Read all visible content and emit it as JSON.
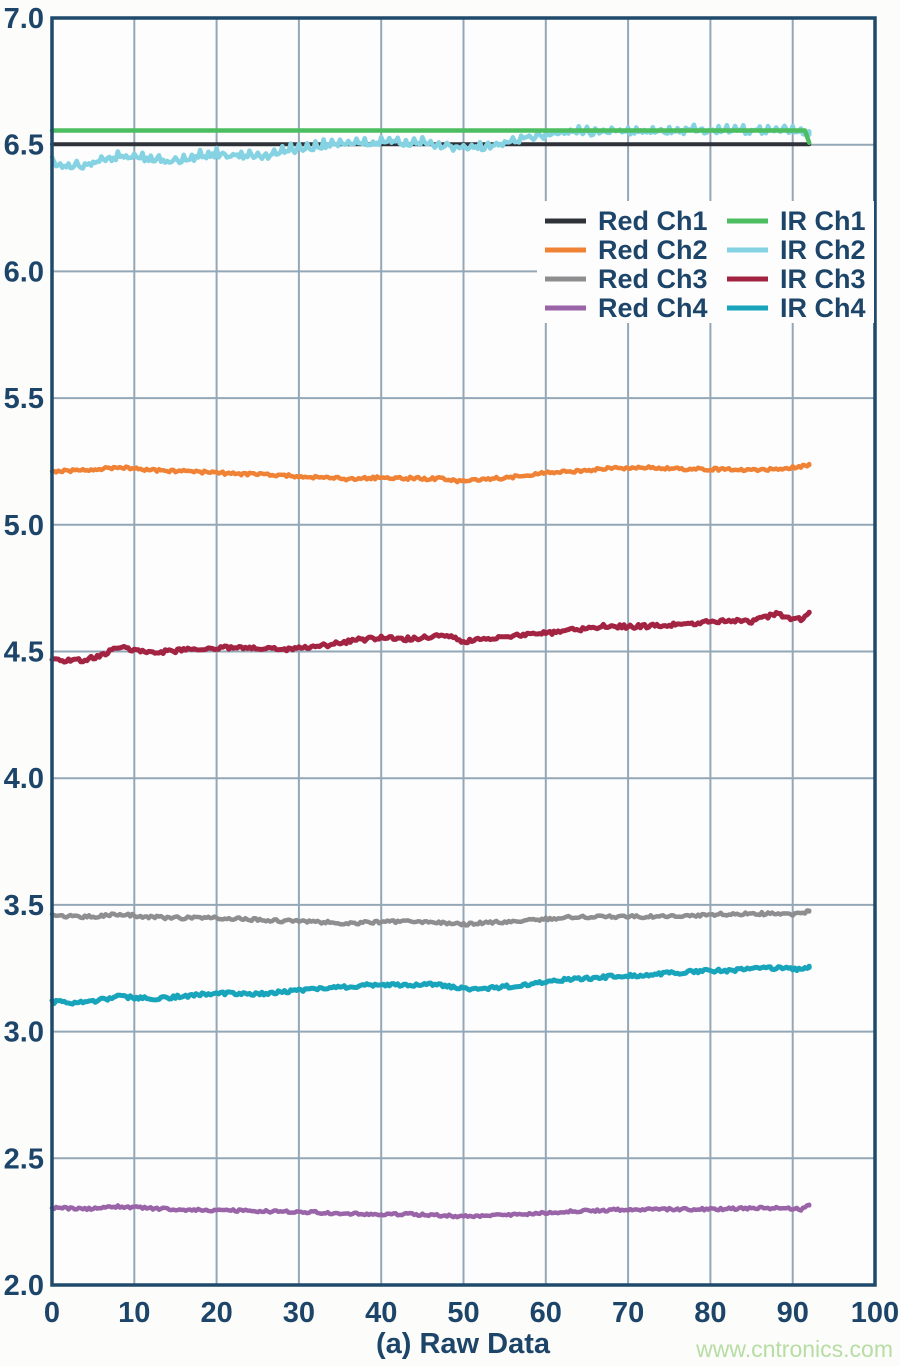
{
  "page": {
    "background": "#fcfcfa",
    "plot_background": "#fdfdfd"
  },
  "watermark": {
    "text": "www.cntronics.com",
    "color": "#b6dda3"
  },
  "chart_data": {
    "type": "line",
    "title": "(a) Raw Data",
    "xlabel": "(a) Raw Data",
    "ylabel": "",
    "xlim": [
      0,
      100
    ],
    "ylim": [
      2.0,
      7.0
    ],
    "grid": true,
    "axis_color": "#1f4a6b",
    "grid_color": "#94a7b7",
    "label_color": "#1d4569",
    "x_ticks": [
      0,
      10,
      20,
      30,
      40,
      50,
      60,
      70,
      80,
      90,
      100
    ],
    "x_tick_labels": [
      "0",
      "10",
      "20",
      "30",
      "40",
      "50",
      "60",
      "70",
      "80",
      "90",
      "100"
    ],
    "y_ticks": [
      2.0,
      2.5,
      3.0,
      3.5,
      4.0,
      4.5,
      5.0,
      5.5,
      6.0,
      6.5,
      7.0
    ],
    "y_tick_labels": [
      "2.0",
      "2.5",
      "3.0",
      "3.5",
      "4.0",
      "4.5",
      "5.0",
      "5.5",
      "6.0",
      "6.5",
      "7.0"
    ],
    "legend": {
      "position": "upper right",
      "columns": [
        [
          "Red Ch1",
          "Red Ch2",
          "Red Ch3",
          "Red Ch4"
        ],
        [
          "IR Ch1",
          "IR Ch2",
          "IR Ch3",
          "IR Ch4"
        ]
      ]
    },
    "series": [
      {
        "name": "Red Ch1",
        "color": "#2f3339",
        "width": 4,
        "noise": 0,
        "spike": 0,
        "x": [
          0,
          92
        ],
        "y": [
          6.502,
          6.502
        ]
      },
      {
        "name": "IR Ch2",
        "color": "#85d3e2",
        "width": 4.5,
        "noise": 0.01,
        "spike": 0.022,
        "x": [
          0,
          2,
          4,
          6,
          8,
          11,
          14,
          17,
          20,
          23,
          26,
          29,
          32,
          35,
          38,
          41,
          44,
          47,
          50,
          53,
          56,
          59,
          62,
          66,
          70,
          75,
          80,
          85,
          90,
          92
        ],
        "y": [
          6.425,
          6.41,
          6.415,
          6.43,
          6.45,
          6.445,
          6.43,
          6.445,
          6.46,
          6.455,
          6.45,
          6.475,
          6.49,
          6.5,
          6.505,
          6.505,
          6.505,
          6.495,
          6.48,
          6.49,
          6.51,
          6.53,
          6.54,
          6.545,
          6.55,
          6.552,
          6.552,
          6.552,
          6.552,
          6.54
        ]
      },
      {
        "name": "IR Ch1",
        "color": "#4cbd60",
        "width": 4.5,
        "noise": 0,
        "spike": 0,
        "x": [
          0,
          91.5,
          92
        ],
        "y": [
          6.556,
          6.556,
          6.508
        ]
      },
      {
        "name": "Red Ch2",
        "color": "#f08236",
        "width": 4.5,
        "noise": 0.006,
        "spike": 0,
        "x": [
          0,
          3,
          6,
          8,
          11,
          14,
          17,
          20,
          24,
          28,
          32,
          36,
          40,
          44,
          47,
          50,
          53,
          57,
          60,
          64,
          68,
          72,
          76,
          80,
          84,
          88,
          90,
          92
        ],
        "y": [
          5.212,
          5.215,
          5.22,
          5.228,
          5.218,
          5.212,
          5.21,
          5.205,
          5.2,
          5.196,
          5.188,
          5.181,
          5.186,
          5.183,
          5.182,
          5.172,
          5.18,
          5.192,
          5.205,
          5.213,
          5.222,
          5.226,
          5.222,
          5.22,
          5.215,
          5.22,
          5.226,
          5.236
        ]
      },
      {
        "name": "IR Ch3",
        "color": "#a32342",
        "width": 5,
        "noise": 0.008,
        "spike": 0,
        "x": [
          0,
          2,
          4,
          6,
          8,
          10,
          13,
          16,
          19,
          22,
          25,
          28,
          31,
          34,
          37,
          40,
          43,
          46,
          48,
          50,
          52,
          55,
          58,
          61,
          64,
          67,
          70,
          73,
          76,
          79,
          82,
          85,
          88,
          90,
          91,
          92
        ],
        "y": [
          4.47,
          4.465,
          4.468,
          4.485,
          4.515,
          4.508,
          4.498,
          4.505,
          4.512,
          4.516,
          4.512,
          4.508,
          4.515,
          4.528,
          4.545,
          4.553,
          4.55,
          4.558,
          4.565,
          4.54,
          4.548,
          4.556,
          4.568,
          4.576,
          4.588,
          4.6,
          4.598,
          4.602,
          4.608,
          4.615,
          4.622,
          4.618,
          4.648,
          4.63,
          4.625,
          4.655
        ]
      },
      {
        "name": "Red Ch3",
        "color": "#8e8e90",
        "width": 4.5,
        "noise": 0.006,
        "spike": 0,
        "x": [
          0,
          4,
          8,
          12,
          16,
          20,
          24,
          28,
          32,
          35,
          38,
          42,
          46,
          50,
          54,
          58,
          62,
          66,
          70,
          74,
          78,
          82,
          86,
          90,
          92
        ],
        "y": [
          3.458,
          3.452,
          3.463,
          3.452,
          3.448,
          3.448,
          3.443,
          3.437,
          3.433,
          3.428,
          3.43,
          3.434,
          3.432,
          3.423,
          3.432,
          3.44,
          3.45,
          3.453,
          3.453,
          3.455,
          3.459,
          3.464,
          3.466,
          3.462,
          3.474
        ]
      },
      {
        "name": "IR Ch4",
        "color": "#18a4bb",
        "width": 5,
        "noise": 0.007,
        "spike": 0,
        "x": [
          0,
          3,
          6,
          8,
          10,
          13,
          16,
          19,
          22,
          25,
          28,
          31,
          34,
          37,
          40,
          43,
          46,
          49,
          51,
          54,
          57,
          60,
          63,
          66,
          69,
          72,
          75,
          78,
          81,
          84,
          87,
          89,
          91,
          92
        ],
        "y": [
          3.118,
          3.112,
          3.125,
          3.14,
          3.133,
          3.13,
          3.14,
          3.15,
          3.152,
          3.148,
          3.158,
          3.165,
          3.172,
          3.18,
          3.188,
          3.184,
          3.188,
          3.175,
          3.168,
          3.175,
          3.183,
          3.198,
          3.205,
          3.213,
          3.22,
          3.224,
          3.23,
          3.238,
          3.24,
          3.244,
          3.25,
          3.253,
          3.242,
          3.258
        ]
      },
      {
        "name": "Red Ch4",
        "color": "#9a64a8",
        "width": 4.5,
        "noise": 0.005,
        "spike": 0,
        "x": [
          0,
          4,
          8,
          12,
          16,
          20,
          24,
          28,
          32,
          36,
          40,
          44,
          48,
          51,
          54,
          58,
          62,
          66,
          70,
          74,
          78,
          82,
          86,
          89,
          91,
          92
        ],
        "y": [
          2.305,
          2.3,
          2.31,
          2.302,
          2.297,
          2.296,
          2.292,
          2.29,
          2.287,
          2.281,
          2.28,
          2.279,
          2.274,
          2.269,
          2.275,
          2.281,
          2.289,
          2.294,
          2.298,
          2.299,
          2.299,
          2.3,
          2.304,
          2.304,
          2.298,
          2.314
        ]
      }
    ]
  }
}
